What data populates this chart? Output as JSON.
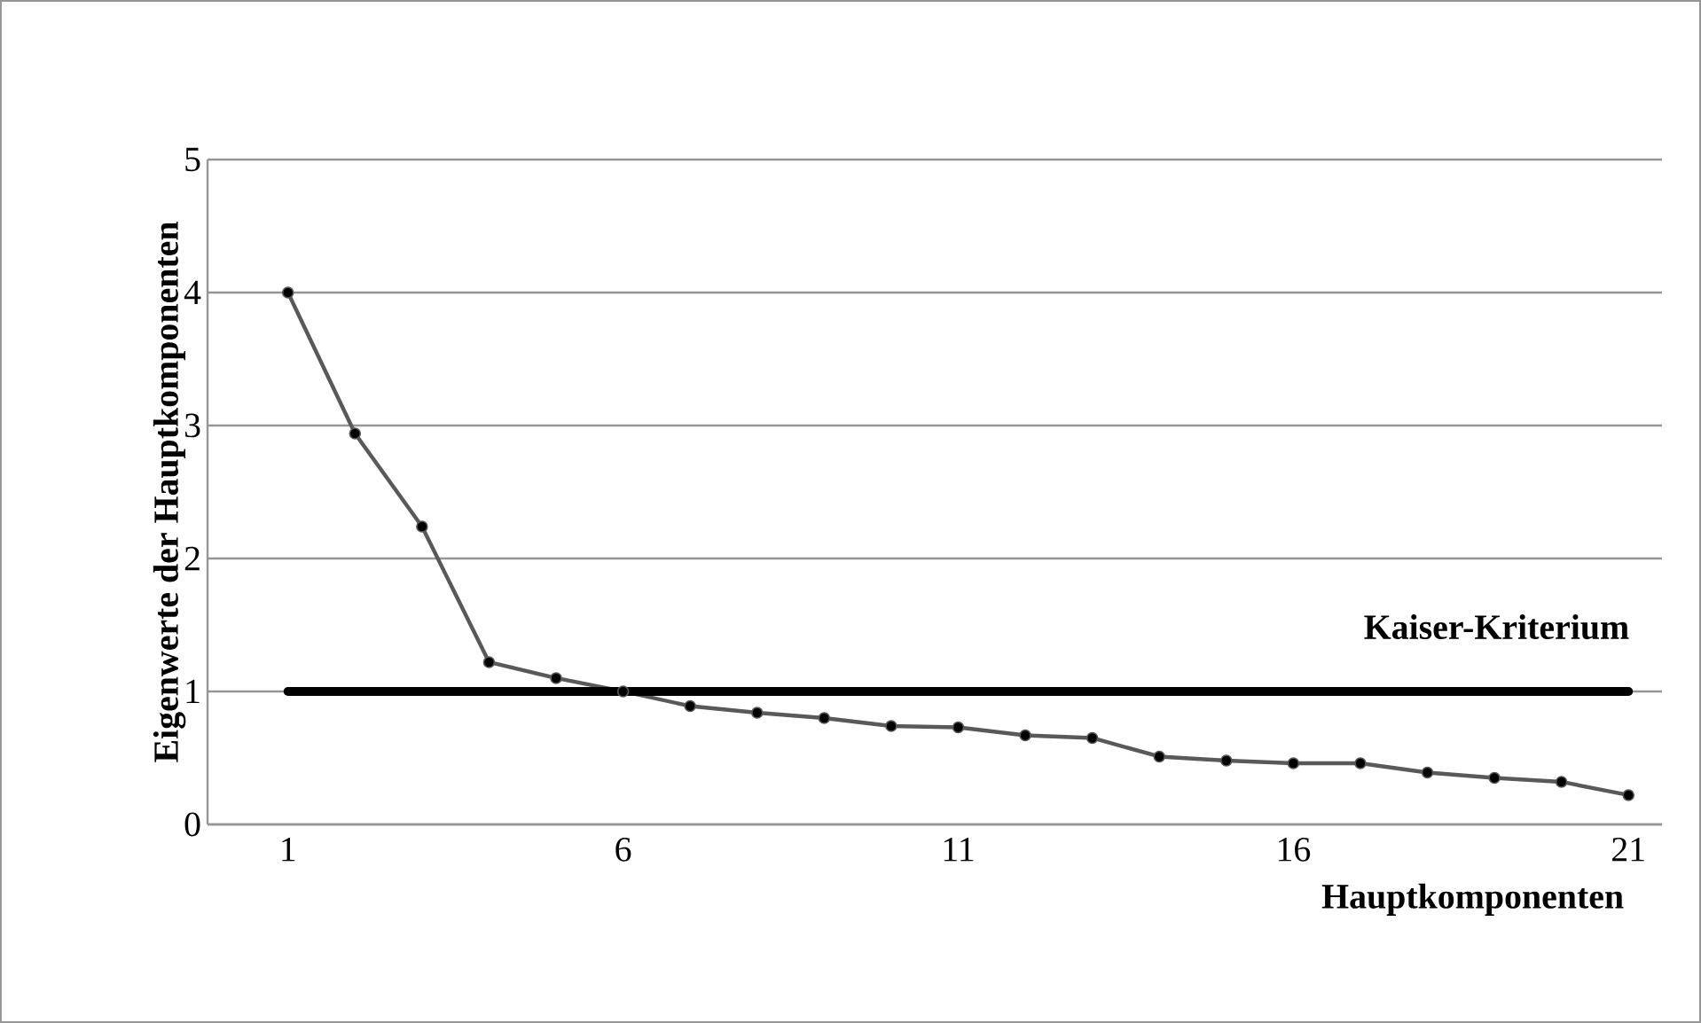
{
  "chart_data": {
    "type": "line",
    "xlabel": "Hauptkomponenten",
    "ylabel": "Eigenwerte der Hauptkomponenten",
    "xlim": [
      -0.2,
      21.5
    ],
    "xticks": [
      1,
      6,
      11,
      16,
      21
    ],
    "ylim": [
      0,
      5
    ],
    "yticks": [
      0,
      1,
      2,
      3,
      4,
      5
    ],
    "grid": "y",
    "marker": "circle",
    "x": [
      1,
      2,
      3,
      4,
      5,
      6,
      7,
      8,
      9,
      10,
      11,
      12,
      13,
      14,
      15,
      16,
      17,
      18,
      19,
      20,
      21
    ],
    "series": [
      {
        "color": "#595959",
        "values": [
          4.0,
          2.94,
          2.24,
          1.22,
          1.1,
          1.0,
          0.89,
          0.84,
          0.8,
          0.74,
          0.73,
          0.67,
          0.65,
          0.51,
          0.48,
          0.46,
          0.46,
          0.39,
          0.35,
          0.32,
          0.22
        ]
      },
      {
        "name": "Kaiser-Kriterium",
        "color": "#000000",
        "x": [
          1,
          21
        ],
        "values": [
          1,
          1
        ],
        "marker": "none"
      }
    ]
  }
}
